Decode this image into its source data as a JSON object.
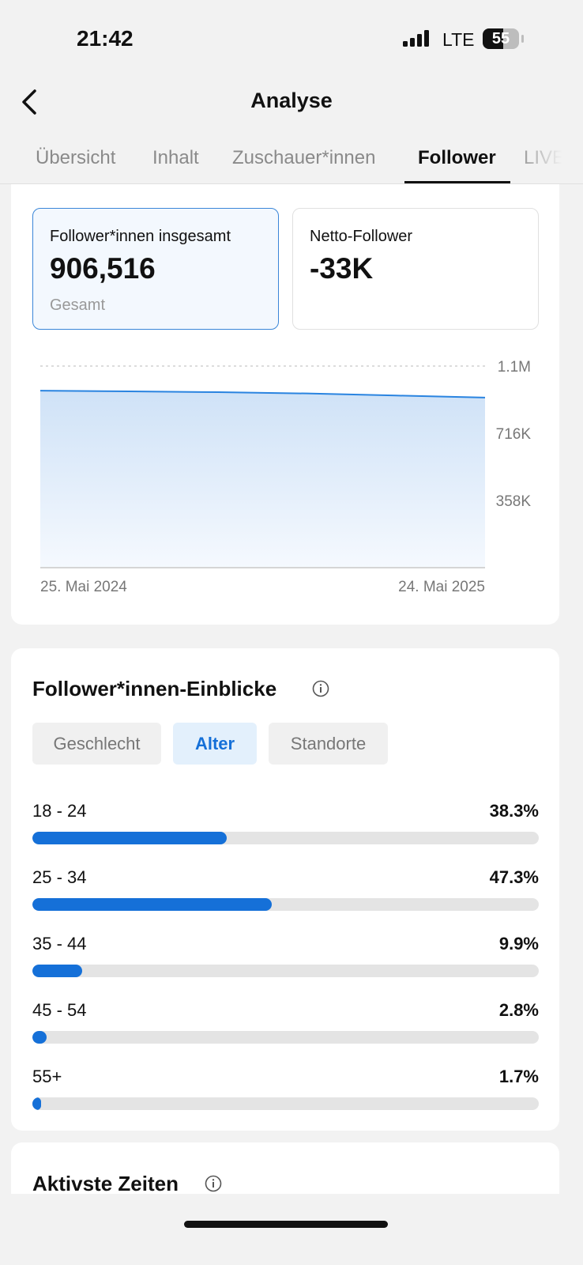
{
  "status_bar": {
    "time": "21:42",
    "network": "LTE",
    "battery": "55"
  },
  "header": {
    "title": "Analyse"
  },
  "tabs": [
    "Übersicht",
    "Inhalt",
    "Zuschauer*innen",
    "Follower",
    "LIVE"
  ],
  "active_tab": 3,
  "cards": [
    {
      "label": "Follower*innen insgesamt",
      "value": "906,516",
      "note": "Gesamt"
    },
    {
      "label": "Netto-Follower",
      "value": "-33K"
    }
  ],
  "chart_data": [
    {
      "type": "line",
      "categories": [
        "25. Mai 2024",
        null,
        null,
        null,
        null,
        "24. Mai 2025"
      ],
      "values": [
        943000,
        939000,
        935000,
        928000,
        917000,
        906000
      ],
      "color": "#2a84e0",
      "ylim": [
        0,
        1074000
      ],
      "yticks": [
        {
          "value": 358000,
          "label": "358K"
        },
        {
          "value": 716000,
          "label": "716K"
        },
        {
          "value": 1074000,
          "label": "1.1M"
        }
      ],
      "grid": true
    },
    {
      "type": "hbar",
      "categories": [
        "18 - 24",
        "25 - 34",
        "35 - 44",
        "45 - 54",
        "55+"
      ],
      "values": [
        38.3,
        47.3,
        9.9,
        2.8,
        1.7
      ],
      "value_labels": [
        "38.3%",
        "47.3%",
        "9.9%",
        "2.8%",
        "1.7%"
      ],
      "color": "#1570d8",
      "xlim": [
        0,
        100
      ]
    }
  ],
  "insights": {
    "title": "Follower*innen-Einblicke",
    "filters": [
      "Geschlecht",
      "Alter",
      "Standorte"
    ],
    "active_filter": 1
  },
  "next_section": {
    "title": "Aktivste Zeiten"
  }
}
